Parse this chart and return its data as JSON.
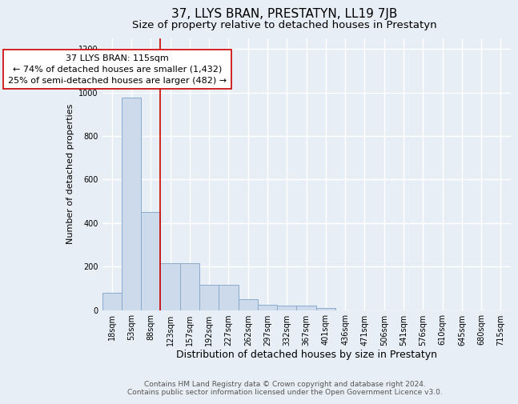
{
  "title": "37, LLYS BRAN, PRESTATYN, LL19 7JB",
  "subtitle": "Size of property relative to detached houses in Prestatyn",
  "xlabel": "Distribution of detached houses by size in Prestatyn",
  "ylabel": "Number of detached properties",
  "categories": [
    "18sqm",
    "53sqm",
    "88sqm",
    "123sqm",
    "157sqm",
    "192sqm",
    "227sqm",
    "262sqm",
    "297sqm",
    "332sqm",
    "367sqm",
    "401sqm",
    "436sqm",
    "471sqm",
    "506sqm",
    "541sqm",
    "576sqm",
    "610sqm",
    "645sqm",
    "680sqm",
    "715sqm"
  ],
  "bar_heights": [
    80,
    975,
    450,
    215,
    215,
    115,
    115,
    50,
    25,
    20,
    20,
    10,
    0,
    0,
    0,
    0,
    0,
    0,
    0,
    0,
    0
  ],
  "bar_color": "#cddaeb",
  "bar_edge_color": "#8aabcc",
  "background_color": "#e8eef5",
  "grid_color": "#ffffff",
  "vline_position": 2.5,
  "vline_color": "#cc0000",
  "annotation_line1": "37 LLYS BRAN: 115sqm",
  "annotation_line2": "← 74% of detached houses are smaller (1,432)",
  "annotation_line3": "25% of semi-detached houses are larger (482) →",
  "annotation_box_color": "#ffffff",
  "annotation_box_edge": "#cc0000",
  "ylim": [
    0,
    1250
  ],
  "yticks": [
    0,
    200,
    400,
    600,
    800,
    1000,
    1200
  ],
  "footer": "Contains HM Land Registry data © Crown copyright and database right 2024.\nContains public sector information licensed under the Open Government Licence v3.0.",
  "title_fontsize": 11,
  "subtitle_fontsize": 9.5,
  "xlabel_fontsize": 9,
  "ylabel_fontsize": 8,
  "tick_fontsize": 7,
  "annotation_fontsize": 8,
  "footer_fontsize": 6.5
}
